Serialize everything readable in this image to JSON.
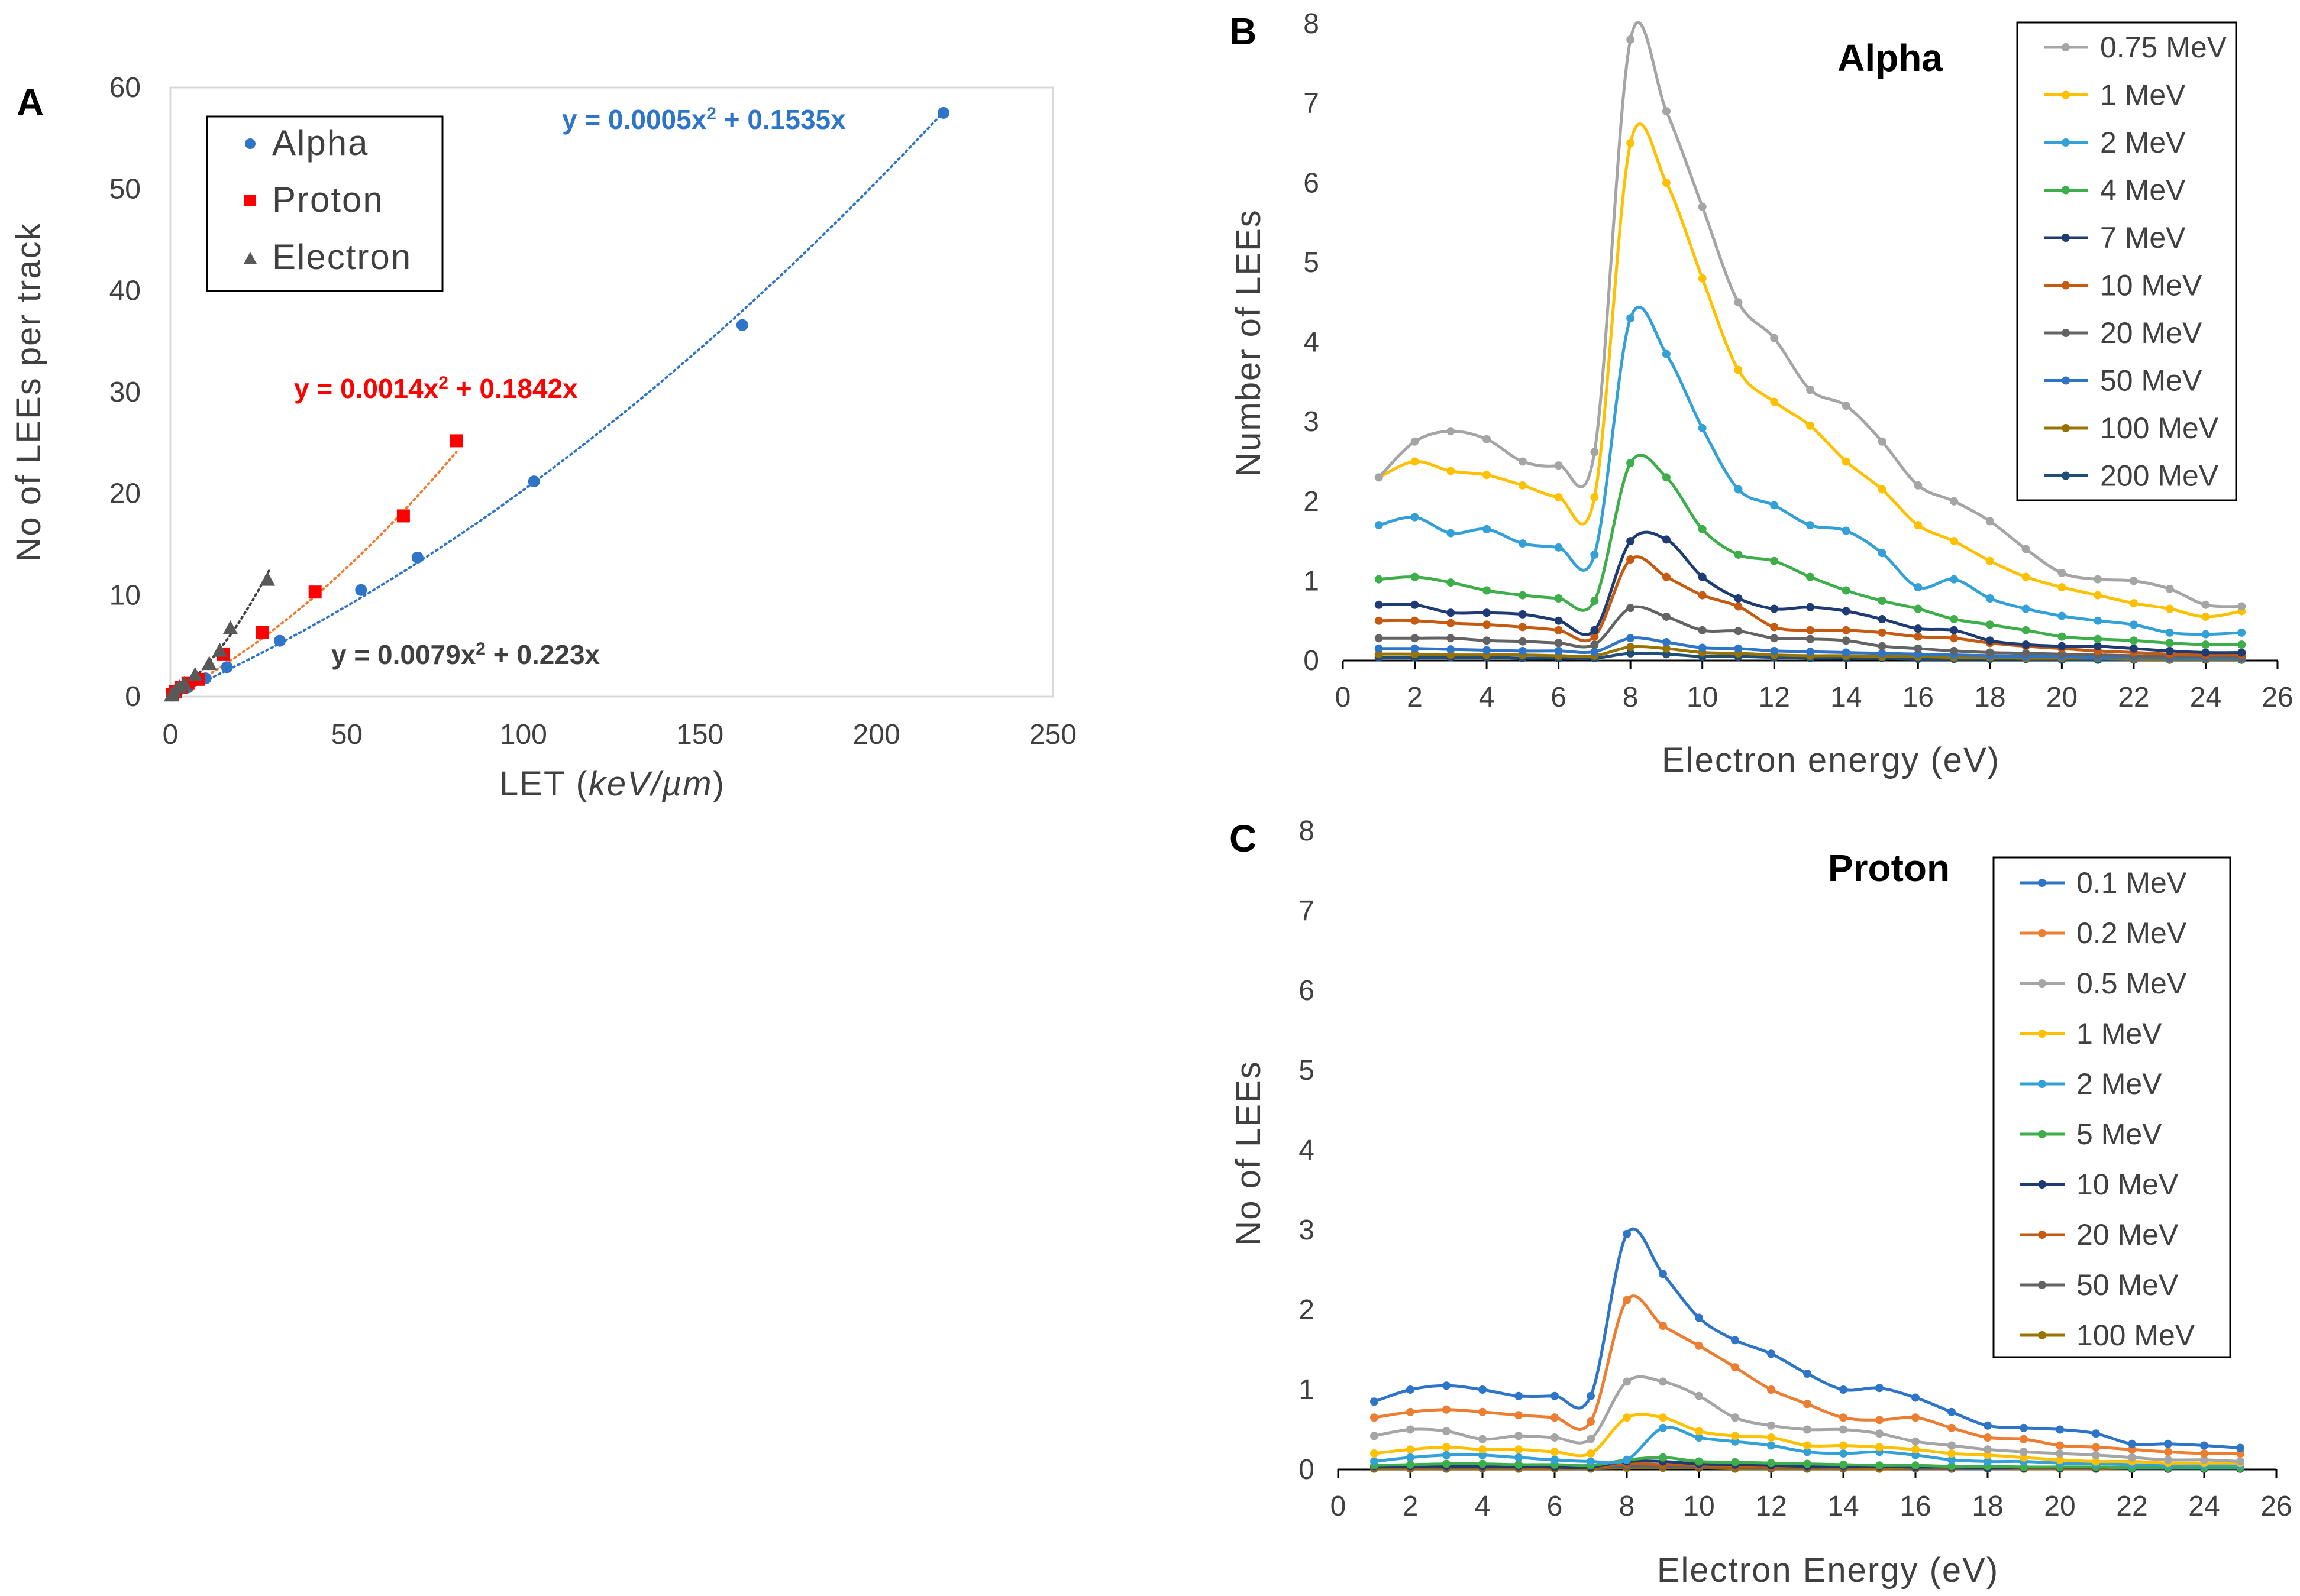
{
  "chart_data": [
    {
      "panel": "A",
      "type": "scatter",
      "xlabel_prefix": "LET (",
      "xlabel_italic": "keV/µm",
      "xlabel_suffix": ")",
      "ylabel": "No of LEEs per track",
      "xlim": [
        0,
        250
      ],
      "ylim": [
        0,
        60
      ],
      "xticks": [
        0,
        50,
        100,
        150,
        200,
        250
      ],
      "yticks": [
        0,
        10,
        20,
        30,
        40,
        50,
        60
      ],
      "legend": [
        "Alpha",
        "Proton",
        "Electron"
      ],
      "series": [
        {
          "name": "Alpha",
          "marker": "circle",
          "color": "#2E75C8",
          "x": [
            0.5,
            1,
            2,
            5,
            10,
            16,
            31,
            54,
            70,
            103,
            162,
            219
          ],
          "y": [
            0.1,
            0.3,
            0.5,
            0.9,
            1.8,
            2.9,
            5.5,
            10.5,
            13.7,
            21.2,
            36.6,
            57.5
          ],
          "fit": {
            "a": 0.0005,
            "b": 0.1535,
            "xmax": 219,
            "color": "#2E75C8",
            "label": "y = 0.0005x² + 0.1535x"
          }
        },
        {
          "name": "Proton",
          "marker": "square",
          "color": "#FF0000",
          "x": [
            0.5,
            1.5,
            3,
            5,
            8,
            15,
            26,
            41,
            66,
            81
          ],
          "y": [
            0.2,
            0.5,
            0.9,
            1.3,
            1.7,
            4.2,
            6.3,
            10.3,
            17.8,
            25.2
          ],
          "fit": {
            "a": 0.0014,
            "b": 0.1842,
            "xmax": 81,
            "color": "#ED7D31",
            "label": "y = 0.0014x² + 0.1842x"
          }
        },
        {
          "name": "Electron",
          "marker": "triangle",
          "color": "#595959",
          "x": [
            0.3,
            1,
            2.5,
            4,
            7,
            11,
            14,
            17,
            27.5
          ],
          "y": [
            0.1,
            0.4,
            0.9,
            1.2,
            2.1,
            3.2,
            4.5,
            6.7,
            11.5
          ],
          "fit": {
            "a": 0.0079,
            "b": 0.223,
            "xmax": 28,
            "color": "#404040",
            "label": "y = 0.0079x² + 0.223x"
          }
        }
      ]
    },
    {
      "panel": "B",
      "type": "line",
      "title": "Alpha",
      "xlabel": "Electron energy (eV)",
      "ylabel": "Number of LEEs",
      "xlim": [
        0,
        26
      ],
      "ylim": [
        0,
        8
      ],
      "xticks": [
        0,
        2,
        4,
        6,
        8,
        10,
        12,
        14,
        16,
        18,
        20,
        22,
        24,
        26
      ],
      "yticks": [
        0,
        1,
        2,
        3,
        4,
        5,
        6,
        7,
        8
      ],
      "x": [
        1,
        2,
        3,
        4,
        5,
        6,
        7,
        8,
        9,
        10,
        11,
        12,
        13,
        14,
        15,
        16,
        17,
        18,
        19,
        20,
        21,
        22,
        23,
        24,
        25
      ],
      "series": [
        {
          "name": "0.75 MeV",
          "color": "#A5A5A5",
          "values": [
            2.3,
            2.75,
            2.88,
            2.78,
            2.5,
            2.45,
            2.62,
            7.8,
            6.9,
            5.7,
            4.5,
            4.05,
            3.4,
            3.2,
            2.75,
            2.2,
            2.0,
            1.75,
            1.4,
            1.1,
            1.02,
            1.0,
            0.9,
            0.7,
            0.68
          ]
        },
        {
          "name": "1 MeV",
          "color": "#FFC000",
          "values": [
            2.3,
            2.5,
            2.38,
            2.33,
            2.2,
            2.05,
            2.05,
            6.5,
            6.0,
            4.8,
            3.65,
            3.25,
            2.95,
            2.5,
            2.15,
            1.7,
            1.5,
            1.25,
            1.05,
            0.92,
            0.82,
            0.72,
            0.65,
            0.55,
            0.62
          ]
        },
        {
          "name": "2 MeV",
          "color": "#33A0D8",
          "values": [
            1.7,
            1.8,
            1.6,
            1.65,
            1.47,
            1.42,
            1.33,
            4.3,
            3.85,
            2.92,
            2.15,
            1.95,
            1.7,
            1.63,
            1.35,
            0.92,
            1.02,
            0.78,
            0.65,
            0.56,
            0.5,
            0.45,
            0.35,
            0.33,
            0.35
          ]
        },
        {
          "name": "4 MeV",
          "color": "#3DAE49",
          "values": [
            1.02,
            1.05,
            0.98,
            0.88,
            0.82,
            0.78,
            0.75,
            2.48,
            2.3,
            1.65,
            1.33,
            1.25,
            1.05,
            0.88,
            0.75,
            0.65,
            0.52,
            0.45,
            0.38,
            0.3,
            0.27,
            0.25,
            0.22,
            0.2,
            0.2
          ]
        },
        {
          "name": "7 MeV",
          "color": "#1F3B73",
          "values": [
            0.7,
            0.7,
            0.6,
            0.6,
            0.58,
            0.5,
            0.38,
            1.5,
            1.52,
            1.05,
            0.78,
            0.65,
            0.67,
            0.62,
            0.52,
            0.4,
            0.38,
            0.25,
            0.2,
            0.18,
            0.18,
            0.15,
            0.12,
            0.1,
            0.1
          ]
        },
        {
          "name": "10 MeV",
          "color": "#C55A11",
          "values": [
            0.5,
            0.5,
            0.47,
            0.45,
            0.42,
            0.38,
            0.3,
            1.27,
            1.05,
            0.82,
            0.68,
            0.42,
            0.38,
            0.38,
            0.35,
            0.3,
            0.28,
            0.22,
            0.18,
            0.15,
            0.12,
            0.1,
            0.08,
            0.07,
            0.07
          ]
        },
        {
          "name": "20 MeV",
          "color": "#636363",
          "values": [
            0.28,
            0.28,
            0.28,
            0.25,
            0.24,
            0.22,
            0.2,
            0.66,
            0.55,
            0.38,
            0.37,
            0.28,
            0.27,
            0.25,
            0.18,
            0.15,
            0.12,
            0.1,
            0.09,
            0.08,
            0.07,
            0.06,
            0.05,
            0.05,
            0.05
          ]
        },
        {
          "name": "50 MeV",
          "color": "#2E75C8",
          "values": [
            0.15,
            0.15,
            0.14,
            0.13,
            0.12,
            0.12,
            0.11,
            0.28,
            0.23,
            0.16,
            0.15,
            0.12,
            0.11,
            0.1,
            0.09,
            0.08,
            0.07,
            0.06,
            0.05,
            0.05,
            0.04,
            0.04,
            0.03,
            0.03,
            0.03
          ]
        },
        {
          "name": "100 MeV",
          "color": "#997300",
          "values": [
            0.08,
            0.08,
            0.07,
            0.07,
            0.07,
            0.06,
            0.06,
            0.17,
            0.15,
            0.1,
            0.09,
            0.07,
            0.06,
            0.06,
            0.05,
            0.05,
            0.04,
            0.04,
            0.03,
            0.03,
            0.03,
            0.02,
            0.02,
            0.02,
            0.02
          ]
        },
        {
          "name": "200 MeV",
          "color": "#1F4E79",
          "values": [
            0.04,
            0.04,
            0.04,
            0.04,
            0.03,
            0.03,
            0.03,
            0.09,
            0.08,
            0.05,
            0.05,
            0.04,
            0.03,
            0.03,
            0.03,
            0.02,
            0.02,
            0.02,
            0.02,
            0.01,
            0.01,
            0.01,
            0.01,
            0.01,
            0.01
          ]
        }
      ]
    },
    {
      "panel": "C",
      "type": "line",
      "title": "Proton",
      "xlabel": "Electron Energy (eV)",
      "ylabel": "No of LEEs",
      "xlim": [
        0,
        26
      ],
      "ylim": [
        0,
        8
      ],
      "xticks": [
        0,
        2,
        4,
        6,
        8,
        10,
        12,
        14,
        16,
        18,
        20,
        22,
        24,
        26
      ],
      "yticks": [
        0,
        1,
        2,
        3,
        4,
        5,
        6,
        7,
        8
      ],
      "x": [
        1,
        2,
        3,
        4,
        5,
        6,
        7,
        8,
        9,
        10,
        11,
        12,
        13,
        14,
        15,
        16,
        17,
        18,
        19,
        20,
        21,
        22,
        23,
        24,
        25
      ],
      "series": [
        {
          "name": "0.1 MeV",
          "color": "#2E75C8",
          "values": [
            0.85,
            1.0,
            1.05,
            1.0,
            0.92,
            0.92,
            0.92,
            2.95,
            2.45,
            1.9,
            1.62,
            1.45,
            1.2,
            1.0,
            1.02,
            0.9,
            0.72,
            0.55,
            0.52,
            0.5,
            0.45,
            0.32,
            0.32,
            0.3,
            0.27
          ]
        },
        {
          "name": "0.2 MeV",
          "color": "#ED7D31",
          "values": [
            0.65,
            0.72,
            0.75,
            0.72,
            0.68,
            0.65,
            0.6,
            2.12,
            1.8,
            1.55,
            1.28,
            1.0,
            0.82,
            0.65,
            0.62,
            0.65,
            0.52,
            0.4,
            0.38,
            0.3,
            0.28,
            0.25,
            0.22,
            0.2,
            0.2
          ]
        },
        {
          "name": "0.5 MeV",
          "color": "#A5A5A5",
          "values": [
            0.42,
            0.5,
            0.48,
            0.38,
            0.42,
            0.4,
            0.38,
            1.1,
            1.1,
            0.92,
            0.65,
            0.55,
            0.5,
            0.5,
            0.45,
            0.35,
            0.3,
            0.25,
            0.22,
            0.2,
            0.18,
            0.15,
            0.12,
            0.12,
            0.1
          ]
        },
        {
          "name": "1 MeV",
          "color": "#FFC000",
          "values": [
            0.2,
            0.25,
            0.28,
            0.25,
            0.25,
            0.22,
            0.2,
            0.65,
            0.65,
            0.48,
            0.42,
            0.4,
            0.3,
            0.3,
            0.28,
            0.25,
            0.2,
            0.18,
            0.15,
            0.12,
            0.1,
            0.1,
            0.08,
            0.08,
            0.08
          ]
        },
        {
          "name": "2 MeV",
          "color": "#33A0D8",
          "values": [
            0.1,
            0.15,
            0.18,
            0.18,
            0.15,
            0.12,
            0.1,
            0.12,
            0.52,
            0.4,
            0.35,
            0.3,
            0.22,
            0.2,
            0.22,
            0.18,
            0.12,
            0.1,
            0.1,
            0.08,
            0.07,
            0.06,
            0.05,
            0.05,
            0.05
          ]
        },
        {
          "name": "5 MeV",
          "color": "#3DAE49",
          "values": [
            0.05,
            0.06,
            0.07,
            0.07,
            0.06,
            0.06,
            0.05,
            0.12,
            0.15,
            0.1,
            0.09,
            0.08,
            0.07,
            0.06,
            0.05,
            0.05,
            0.04,
            0.04,
            0.03,
            0.03,
            0.03,
            0.02,
            0.02,
            0.02,
            0.02
          ]
        },
        {
          "name": "10 MeV",
          "color": "#1F3B73",
          "values": [
            0.04,
            0.04,
            0.04,
            0.04,
            0.04,
            0.03,
            0.03,
            0.1,
            0.1,
            0.07,
            0.06,
            0.05,
            0.04,
            0.04,
            0.04,
            0.03,
            0.03,
            0.02,
            0.02,
            0.02,
            0.02,
            0.01,
            0.01,
            0.01,
            0.01
          ]
        },
        {
          "name": "20 MeV",
          "color": "#C55A11",
          "values": [
            0.03,
            0.03,
            0.03,
            0.03,
            0.03,
            0.02,
            0.02,
            0.07,
            0.06,
            0.05,
            0.04,
            0.03,
            0.03,
            0.03,
            0.02,
            0.02,
            0.02,
            0.02,
            0.01,
            0.01,
            0.01,
            0.01,
            0.01,
            0.01,
            0.01
          ]
        },
        {
          "name": "50 MeV",
          "color": "#636363",
          "values": [
            0.02,
            0.02,
            0.02,
            0.02,
            0.02,
            0.02,
            0.02,
            0.04,
            0.04,
            0.03,
            0.03,
            0.02,
            0.02,
            0.02,
            0.02,
            0.01,
            0.01,
            0.01,
            0.01,
            0.01,
            0.01,
            0.01,
            0.01,
            0.01,
            0.01
          ]
        },
        {
          "name": "100 MeV",
          "color": "#997300",
          "values": [
            0.01,
            0.01,
            0.01,
            0.01,
            0.01,
            0.01,
            0.01,
            0.02,
            0.02,
            0.02,
            0.01,
            0.01,
            0.01,
            0.01,
            0.01,
            0.01,
            0.01,
            0.01,
            0.01,
            0.01,
            0.01,
            0.01,
            0.01,
            0.01,
            0.01
          ]
        }
      ]
    }
  ]
}
